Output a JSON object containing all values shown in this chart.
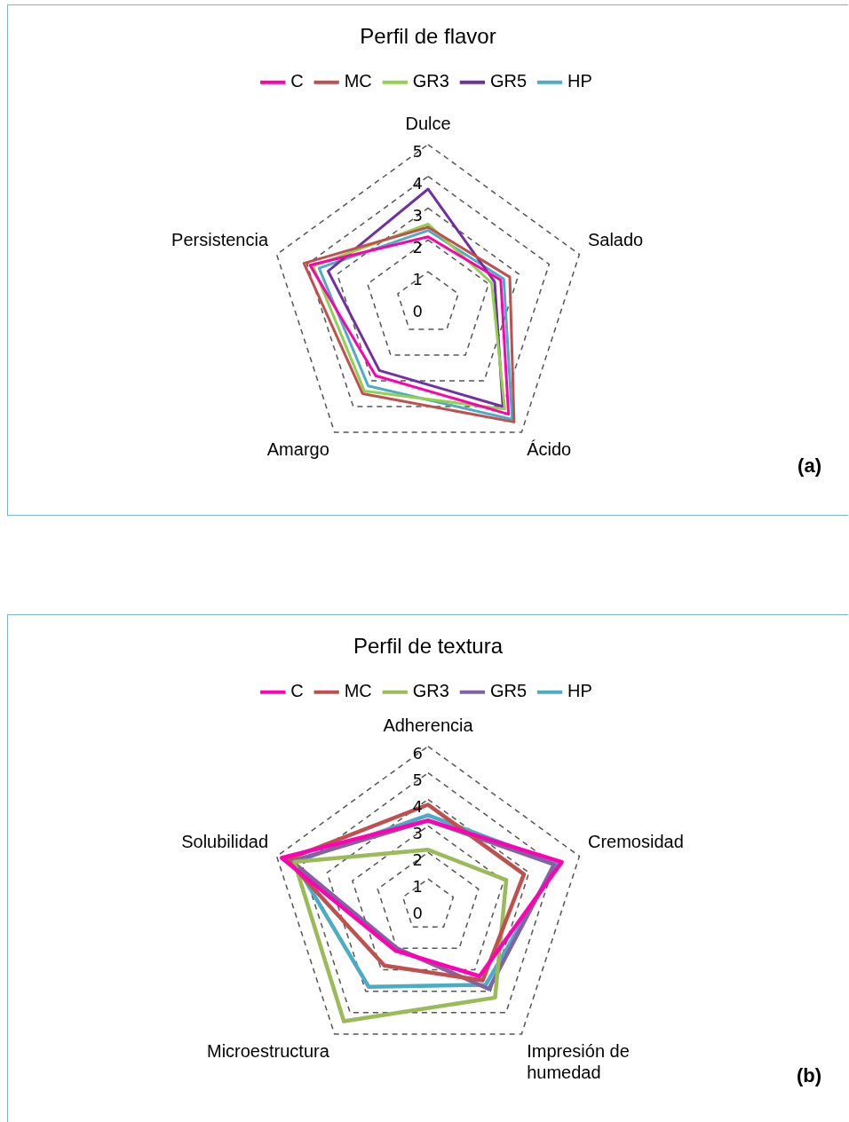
{
  "chart_data": [
    {
      "type": "radar",
      "title": "Perfil de flavor",
      "categories": [
        "Dulce",
        "Salado",
        "Ácido",
        "Amargo",
        "Persistencia"
      ],
      "ylim": [
        0,
        5
      ],
      "yticks": [
        0,
        1,
        2,
        3,
        4,
        5
      ],
      "grid": true,
      "legend": "top",
      "marker": "none",
      "annotations": [
        "(a)"
      ],
      "series": [
        {
          "name": "C",
          "color": "#ff00aa",
          "values": [
            2.1,
            2.4,
            4.3,
            2.8,
            3.9
          ]
        },
        {
          "name": "MC",
          "color": "#c0504d",
          "values": [
            2.4,
            2.7,
            4.6,
            3.5,
            4.1
          ]
        },
        {
          "name": "GR3",
          "color": "#92d050",
          "values": [
            2.5,
            2.1,
            4.1,
            3.4,
            3.8
          ]
        },
        {
          "name": "GR5",
          "color": "#7030a0",
          "values": [
            3.6,
            2.2,
            4.0,
            2.6,
            3.3
          ]
        },
        {
          "name": "HP",
          "color": "#4bacc6",
          "values": [
            2.3,
            2.5,
            4.5,
            3.2,
            3.6
          ]
        }
      ]
    },
    {
      "type": "radar",
      "title": "Perfil de textura",
      "categories": [
        "Adherencia",
        "Cremosidad",
        "Impresión de humedad",
        "Microestructura",
        "Solubilidad"
      ],
      "ylim": [
        0,
        6
      ],
      "yticks": [
        0,
        1,
        2,
        3,
        4,
        5,
        6
      ],
      "grid": true,
      "legend": "top",
      "marker": "none",
      "annotations": [
        "(b)"
      ],
      "series": [
        {
          "name": "C",
          "color": "#ff00b4",
          "values": [
            3.2,
            5.3,
            3.3,
            2.1,
            5.8
          ]
        },
        {
          "name": "MC",
          "color": "#c0504d",
          "values": [
            3.8,
            3.8,
            3.5,
            2.8,
            5.6
          ]
        },
        {
          "name": "GR3",
          "color": "#9bbb59",
          "values": [
            2.1,
            3.1,
            4.3,
            5.4,
            5.3
          ]
        },
        {
          "name": "GR5",
          "color": "#8064a2",
          "values": [
            3.2,
            5.0,
            3.9,
            2.0,
            5.4
          ]
        },
        {
          "name": "HP",
          "color": "#4bacc6",
          "values": [
            3.4,
            5.1,
            3.7,
            3.8,
            5.3
          ]
        }
      ]
    }
  ]
}
